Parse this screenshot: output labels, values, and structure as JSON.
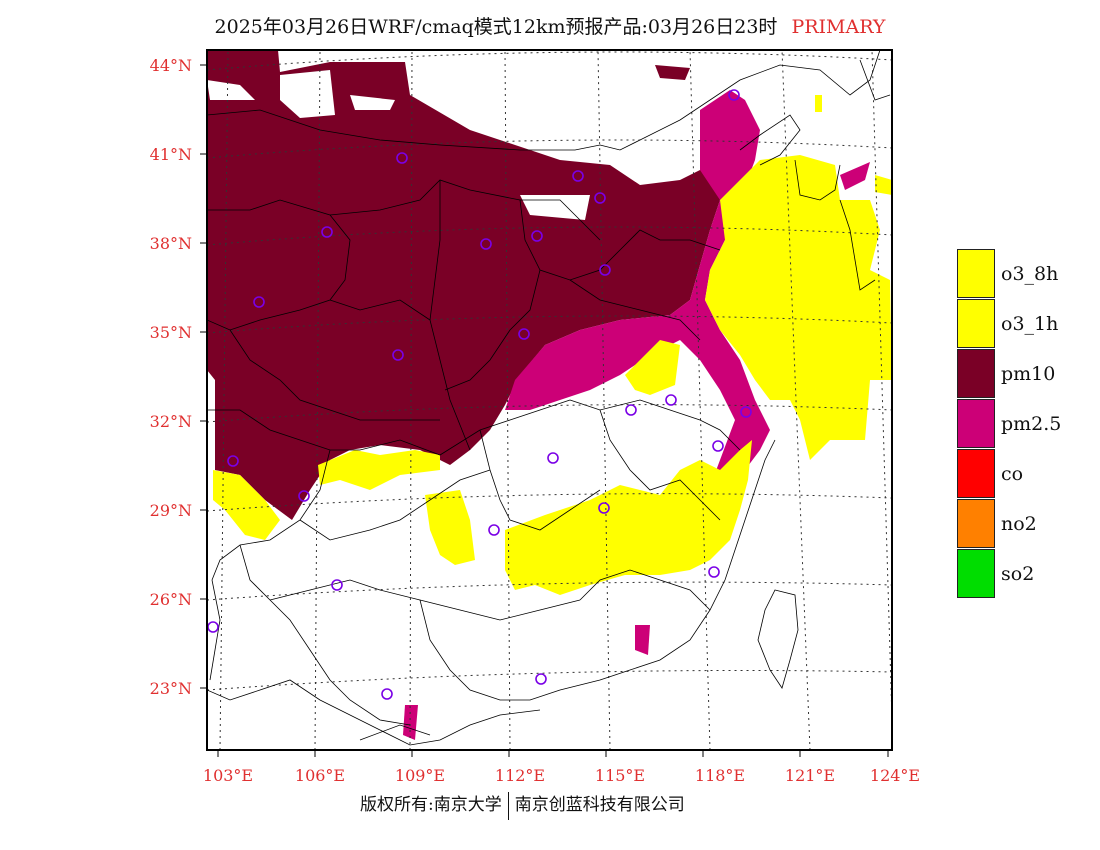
{
  "title": {
    "main": "2025年03月26日WRF/cmaq模式12km预报产品:03月26日23时",
    "tag": "PRIMARY"
  },
  "axes": {
    "lat_labels": [
      "44°N",
      "41°N",
      "38°N",
      "35°N",
      "32°N",
      "29°N",
      "26°N",
      "23°N"
    ],
    "lon_labels": [
      "103°E",
      "106°E",
      "109°E",
      "112°E",
      "115°E",
      "118°E",
      "121°E",
      "124°E"
    ]
  },
  "legend": [
    {
      "label": "o3_8h",
      "color": "#ffff00"
    },
    {
      "label": "o3_1h",
      "color": "#ffff00"
    },
    {
      "label": "pm10",
      "color": "#7a0026"
    },
    {
      "label": "pm2.5",
      "color": "#cc0077"
    },
    {
      "label": "co",
      "color": "#ff0000"
    },
    {
      "label": "no2",
      "color": "#ff8000"
    },
    {
      "label": "so2",
      "color": "#00dd00"
    }
  ],
  "footer": {
    "left": "版权所有:南京大学",
    "right": "南京创蓝科技有限公司"
  }
}
